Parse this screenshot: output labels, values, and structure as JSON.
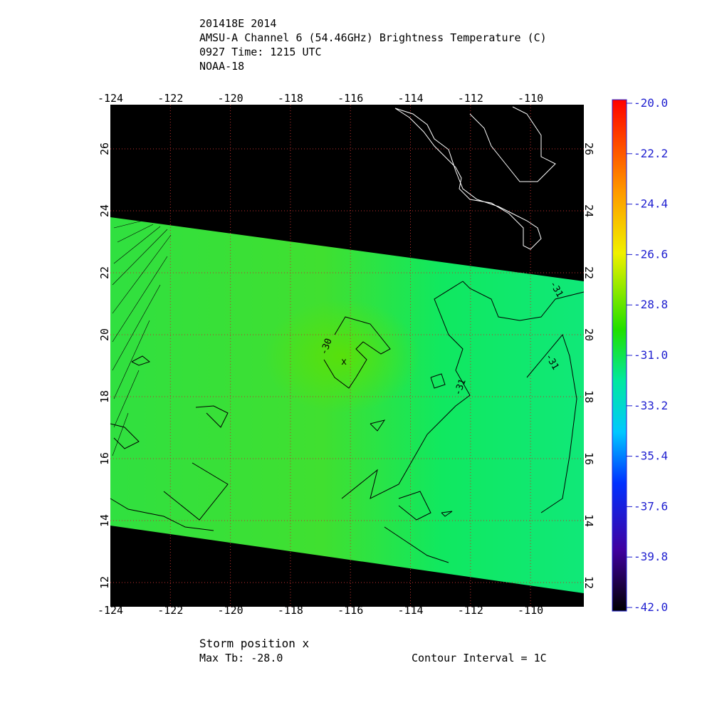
{
  "header": {
    "lines": [
      "201418E 2014",
      "AMSU-A Channel 6 (54.46GHz) Brightness Temperature (C)",
      "0927 Time: 1215 UTC",
      "NOAA-18"
    ]
  },
  "map": {
    "lon_ticks": [
      "-124",
      "-122",
      "-120",
      "-118",
      "-116",
      "-114",
      "-112",
      "-110"
    ],
    "lat_ticks": [
      "12",
      "14",
      "16",
      "18",
      "20",
      "22",
      "24",
      "26"
    ],
    "contour_labels": [
      "-30",
      "-31",
      "-31",
      "-31"
    ]
  },
  "colorbar": {
    "ticks": [
      "-20.0",
      "-22.2",
      "-24.4",
      "-26.6",
      "-28.8",
      "-31.0",
      "-33.2",
      "-35.4",
      "-37.6",
      "-39.8",
      "-42.0"
    ]
  },
  "footer": {
    "storm": "Storm position x",
    "max_tb": "Max Tb: -28.0",
    "interval": "Contour Interval = 1C"
  }
}
